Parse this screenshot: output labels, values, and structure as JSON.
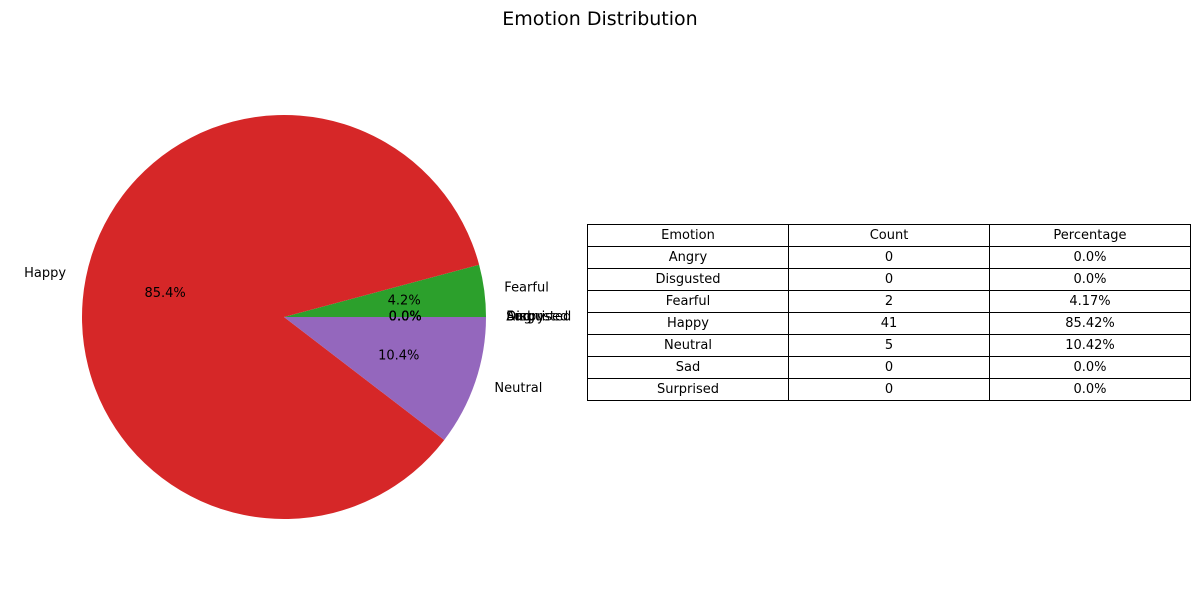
{
  "chart_data": [
    {
      "type": "pie",
      "title": "Emotion Distribution",
      "start_angle_deg": 0,
      "direction": "counterclockwise",
      "slices": [
        {
          "label": "Angry",
          "value": 0,
          "pct_label": "0.0%",
          "color": "#1f77b4"
        },
        {
          "label": "Disgusted",
          "value": 0,
          "pct_label": "0.0%",
          "color": "#ff7f0e"
        },
        {
          "label": "Fearful",
          "value": 2,
          "pct_label": "4.2%",
          "color": "#2ca02c"
        },
        {
          "label": "Happy",
          "value": 41,
          "pct_label": "85.4%",
          "color": "#d62728"
        },
        {
          "label": "Neutral",
          "value": 5,
          "pct_label": "10.4%",
          "color": "#9467bd"
        },
        {
          "label": "Sad",
          "value": 0,
          "pct_label": "0.0%",
          "color": "#8c564b"
        },
        {
          "label": "Surprised",
          "value": 0,
          "pct_label": "0.0%",
          "color": "#e377c2"
        }
      ]
    },
    {
      "type": "table",
      "columns": [
        "Emotion",
        "Count",
        "Percentage"
      ],
      "rows": [
        [
          "Angry",
          "0",
          "0.0%"
        ],
        [
          "Disgusted",
          "0",
          "0.0%"
        ],
        [
          "Fearful",
          "2",
          "4.17%"
        ],
        [
          "Happy",
          "41",
          "85.42%"
        ],
        [
          "Neutral",
          "5",
          "10.42%"
        ],
        [
          "Sad",
          "0",
          "0.0%"
        ],
        [
          "Surprised",
          "0",
          "0.0%"
        ]
      ]
    }
  ]
}
